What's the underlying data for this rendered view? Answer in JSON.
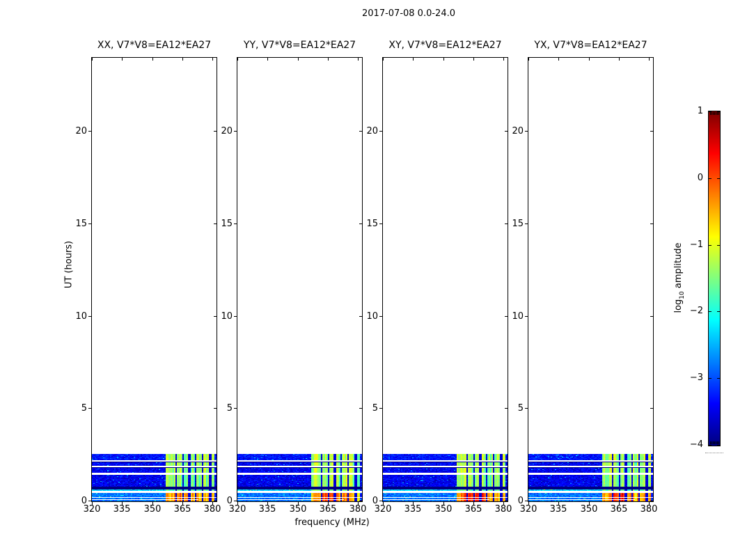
{
  "figure": {
    "title": "2017-07-08 0.0-24.0",
    "background": "#ffffff"
  },
  "axes": {
    "xlabel": "frequency (MHz)",
    "ylabel": "UT (hours)",
    "x_ticks": [
      320,
      335,
      350,
      365,
      380
    ],
    "y_ticks": [
      0,
      5,
      10,
      15,
      20
    ],
    "x_range": [
      320,
      382
    ],
    "y_range": [
      0,
      24
    ]
  },
  "panels": [
    {
      "id": "xx",
      "title": "XX, V7*V8=EA12*EA27",
      "seed": 101,
      "hot": 0.5
    },
    {
      "id": "yy",
      "title": "YY, V7*V8=EA12*EA27",
      "seed": 202,
      "hot": 0.55
    },
    {
      "id": "xy",
      "title": "XY, V7*V8=EA12*EA27",
      "seed": 303,
      "hot": 0.9
    },
    {
      "id": "yx",
      "title": "YX, V7*V8=EA12*EA27",
      "seed": 404,
      "hot": 0.7
    }
  ],
  "colorbar": {
    "label_prefix": "log",
    "label_sub": "10",
    "label_suffix": " amplitude",
    "tick_labels": [
      "1",
      "0",
      "−1",
      "−2",
      "−3",
      "−4"
    ],
    "tick_values": [
      1,
      0,
      -1,
      -2,
      -3,
      -4
    ],
    "vmin": -4,
    "vmax": 1,
    "colormap": "jet"
  },
  "chart_data": {
    "type": "heatmap",
    "title": "2017-07-08 0.0-24.0",
    "xlabel": "frequency (MHz)",
    "ylabel": "UT (hours)",
    "value_label": "log10 amplitude",
    "panel_titles": [
      "XX, V7*V8=EA12*EA27",
      "YY, V7*V8=EA12*EA27",
      "XY, V7*V8=EA12*EA27",
      "YX, V7*V8=EA12*EA27"
    ],
    "x_range_mhz": [
      320,
      382
    ],
    "y_range_hours": [
      0,
      24
    ],
    "color_range_log10": [
      -4,
      1
    ],
    "colormap": "jet",
    "data_extent_hours": [
      0,
      2.56
    ],
    "noise_floor_log10": -3.4,
    "rfi_band_mhz": [
      356.8,
      380.8
    ],
    "rfi_notches_mhz": [
      {
        "f": 361.7,
        "w": 0.8
      },
      {
        "f": 365.1,
        "w": 0.6
      },
      {
        "f": 368.5,
        "w": 0.9
      },
      {
        "f": 371.9,
        "w": 0.7
      },
      {
        "f": 375.3,
        "w": 0.6
      },
      {
        "f": 378.7,
        "w": 1.1
      }
    ],
    "hot_blob": {
      "center_mhz": 366.5,
      "sigma_mhz": 4.5
    },
    "time_bands": [
      {
        "t0": 0.0,
        "t1": 0.45,
        "kind": "data",
        "bg": -2.8,
        "stripe": -0.55,
        "hot": true
      },
      {
        "t0": 0.45,
        "t1": 0.56,
        "kind": "gap"
      },
      {
        "t0": 0.56,
        "t1": 0.64,
        "kind": "data",
        "bg": -2.35,
        "stripe": -1.55
      },
      {
        "t0": 0.64,
        "t1": 0.8,
        "kind": "black"
      },
      {
        "t0": 0.8,
        "t1": 1.43,
        "kind": "data",
        "bg": -3.45,
        "stripe": -1.35
      },
      {
        "t0": 1.43,
        "t1": 1.56,
        "kind": "gap"
      },
      {
        "t0": 1.56,
        "t1": 1.8,
        "kind": "data",
        "bg": -3.45,
        "stripe": -1.3
      },
      {
        "t0": 1.8,
        "t1": 1.86,
        "kind": "black"
      },
      {
        "t0": 1.86,
        "t1": 1.94,
        "kind": "gap"
      },
      {
        "t0": 1.94,
        "t1": 2.1,
        "kind": "data",
        "bg": -3.4,
        "stripe": -1.3
      },
      {
        "t0": 2.1,
        "t1": 2.16,
        "kind": "black"
      },
      {
        "t0": 2.16,
        "t1": 2.24,
        "kind": "gap"
      },
      {
        "t0": 2.24,
        "t1": 2.56,
        "kind": "data",
        "bg": -3.3,
        "stripe": -1.25
      }
    ],
    "thin_gaps": [
      {
        "t": 0.23,
        "f0": 320,
        "f1": 382
      },
      {
        "t": 0.1,
        "f0": 320,
        "f1": 373
      }
    ]
  }
}
